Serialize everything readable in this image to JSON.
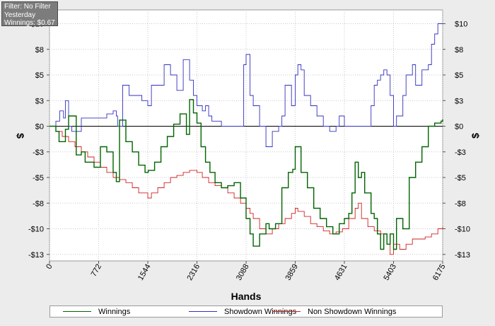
{
  "filter_box": {
    "filter": "Filter: No Filter",
    "period": "Yesterday",
    "winnings": "Winnings: $0.67"
  },
  "colors": {
    "winnings": "#006400",
    "showdown": "#3030c0",
    "non_showdown": "#d02020",
    "zero_line": "#000000",
    "grid": "#c8c8c8"
  },
  "chart_data": {
    "type": "line",
    "xlabel": "Hands",
    "ylabel": "$",
    "xlim": [
      0,
      6175
    ],
    "ylim": [
      -13,
      11
    ],
    "x_ticks": [
      "0",
      "772",
      "1544",
      "2316",
      "3088",
      "3859",
      "4631",
      "5403",
      "6175"
    ],
    "y_tick_values": [
      10,
      7.5,
      5,
      2.5,
      0,
      -2.5,
      -5,
      -7.5,
      -10,
      -12.5
    ],
    "y_tick_labels": [
      "$10",
      "$8",
      "$5",
      "$3",
      "$0",
      "-$3",
      "-$5",
      "-$8",
      "-$10",
      "-$13"
    ],
    "grid": true,
    "legend_position": "bottom",
    "series": [
      {
        "name": "Winnings",
        "x": [
          0,
          100,
          150,
          250,
          300,
          420,
          500,
          560,
          620,
          700,
          800,
          900,
          1000,
          1050,
          1100,
          1200,
          1300,
          1400,
          1500,
          1550,
          1650,
          1750,
          1850,
          1950,
          2050,
          2150,
          2200,
          2260,
          2316,
          2380,
          2450,
          2520,
          2600,
          2700,
          2800,
          2900,
          3000,
          3088,
          3150,
          3200,
          3300,
          3400,
          3450,
          3550,
          3650,
          3750,
          3820,
          3859,
          3950,
          4050,
          4150,
          4250,
          4350,
          4450,
          4550,
          4631,
          4700,
          4750,
          4800,
          4850,
          4900,
          4950,
          5050,
          5100,
          5150,
          5200,
          5250,
          5300,
          5350,
          5403,
          5450,
          5550,
          5600,
          5650,
          5750,
          5850,
          5950,
          6050,
          6150,
          6175
        ],
        "y": [
          0,
          -0.5,
          -1.5,
          -0.3,
          1.0,
          -2.8,
          -2.5,
          -3.5,
          -3.5,
          -4.0,
          -2.0,
          -2.5,
          -4.5,
          -5.4,
          0.6,
          -1.5,
          -2.5,
          -3.8,
          -4.5,
          -4.3,
          -3.5,
          -2.0,
          -1.0,
          0.2,
          1.2,
          -0.8,
          2.6,
          1.3,
          0.3,
          -2.0,
          -3.5,
          -4.5,
          -5.5,
          -6.0,
          -5.8,
          -5.5,
          -7.0,
          -9.0,
          -10.5,
          -11.7,
          -10.5,
          -9.5,
          -10.0,
          -9.5,
          -6.0,
          -4.5,
          -4.2,
          -2.0,
          -4.5,
          -6.0,
          -8.0,
          -9.0,
          -9.8,
          -10.5,
          -9.5,
          -9.0,
          -8.5,
          -6.5,
          -3.5,
          -5.0,
          -4.5,
          -6.5,
          -8.5,
          -9.0,
          -10.5,
          -12.0,
          -10.5,
          -11.5,
          -10.5,
          -12.0,
          -9.0,
          -10.0,
          -10.0,
          -5.0,
          -3.5,
          -2.0,
          0.0,
          0.3,
          0.5,
          0.67
        ]
      },
      {
        "name": "Showdown Winnings",
        "x": [
          0,
          100,
          160,
          220,
          250,
          300,
          350,
          500,
          600,
          700,
          800,
          900,
          1000,
          1050,
          1070,
          1150,
          1250,
          1350,
          1450,
          1544,
          1600,
          1700,
          1800,
          1900,
          2000,
          2100,
          2200,
          2260,
          2316,
          2400,
          2450,
          2500,
          2550,
          2600,
          2700,
          2800,
          2900,
          3000,
          3050,
          3088,
          3150,
          3200,
          3300,
          3400,
          3500,
          3600,
          3650,
          3700,
          3800,
          3859,
          3900,
          3950,
          4000,
          4100,
          4200,
          4300,
          4400,
          4500,
          4550,
          4631,
          4700,
          4800,
          4900,
          5000,
          5050,
          5100,
          5150,
          5200,
          5250,
          5300,
          5350,
          5403,
          5450,
          5550,
          5600,
          5650,
          5700,
          5750,
          5850,
          5950,
          6000,
          6050,
          6100,
          6150,
          6175
        ],
        "y": [
          0,
          0.5,
          1.5,
          0.8,
          2.5,
          0,
          -0.5,
          0.8,
          0.8,
          0.8,
          0.8,
          1.2,
          1.5,
          1.0,
          0,
          4.0,
          3.0,
          3.0,
          2.5,
          2.0,
          4.0,
          4.0,
          6.0,
          5.0,
          3.5,
          6.5,
          4.5,
          3.0,
          2.0,
          1.5,
          2.0,
          1.0,
          0.5,
          0.5,
          0.0,
          0.0,
          0.0,
          0.0,
          6.0,
          7.0,
          3.0,
          2.0,
          0.0,
          -2.0,
          -0.5,
          0.0,
          1.0,
          4.0,
          2.0,
          5.0,
          6.0,
          5.5,
          3.0,
          2.0,
          1.0,
          0.0,
          -0.5,
          0.0,
          1.0,
          0.0,
          0.0,
          0.0,
          0.0,
          0.0,
          2.0,
          4.0,
          4.5,
          5.0,
          5.5,
          5.0,
          3.0,
          0.0,
          1.0,
          3.0,
          5.0,
          5.0,
          6.0,
          4.0,
          5.5,
          6.0,
          8.0,
          9.0,
          10.0,
          10.0,
          10.0
        ]
      },
      {
        "name": "Non Showdown Winnings",
        "x": [
          0,
          100,
          200,
          300,
          400,
          500,
          600,
          700,
          800,
          900,
          1000,
          1100,
          1200,
          1300,
          1400,
          1544,
          1600,
          1700,
          1800,
          1900,
          2000,
          2100,
          2200,
          2316,
          2400,
          2500,
          2600,
          2700,
          2800,
          2900,
          3000,
          3088,
          3150,
          3200,
          3300,
          3400,
          3500,
          3600,
          3700,
          3800,
          3859,
          3900,
          4000,
          4100,
          4200,
          4300,
          4400,
          4500,
          4600,
          4631,
          4700,
          4800,
          4850,
          4900,
          5000,
          5100,
          5200,
          5300,
          5350,
          5403,
          5500,
          5600,
          5700,
          5800,
          5900,
          6000,
          6100,
          6175
        ],
        "y": [
          0,
          -0.5,
          -1.0,
          -1.5,
          -2.0,
          -2.5,
          -3.0,
          -3.5,
          -4.0,
          -4.5,
          -5.0,
          -5.2,
          -5.5,
          -6.0,
          -6.5,
          -7.0,
          -6.5,
          -6.0,
          -5.5,
          -5.0,
          -4.8,
          -4.5,
          -4.3,
          -4.5,
          -5.0,
          -5.5,
          -5.8,
          -6.0,
          -6.5,
          -7.0,
          -7.5,
          -8.0,
          -8.5,
          -9.0,
          -10.0,
          -10.5,
          -10.0,
          -9.5,
          -9.0,
          -8.5,
          -8.0,
          -8.3,
          -8.8,
          -9.5,
          -9.8,
          -10.2,
          -10.5,
          -10.3,
          -10.0,
          -10.0,
          -9.0,
          -8.0,
          -7.5,
          -9.0,
          -9.8,
          -10.2,
          -10.5,
          -11.5,
          -12.5,
          -11.5,
          -12.0,
          -11.5,
          -11.0,
          -11.0,
          -10.8,
          -10.5,
          -10.0,
          -9.8
        ]
      }
    ]
  }
}
